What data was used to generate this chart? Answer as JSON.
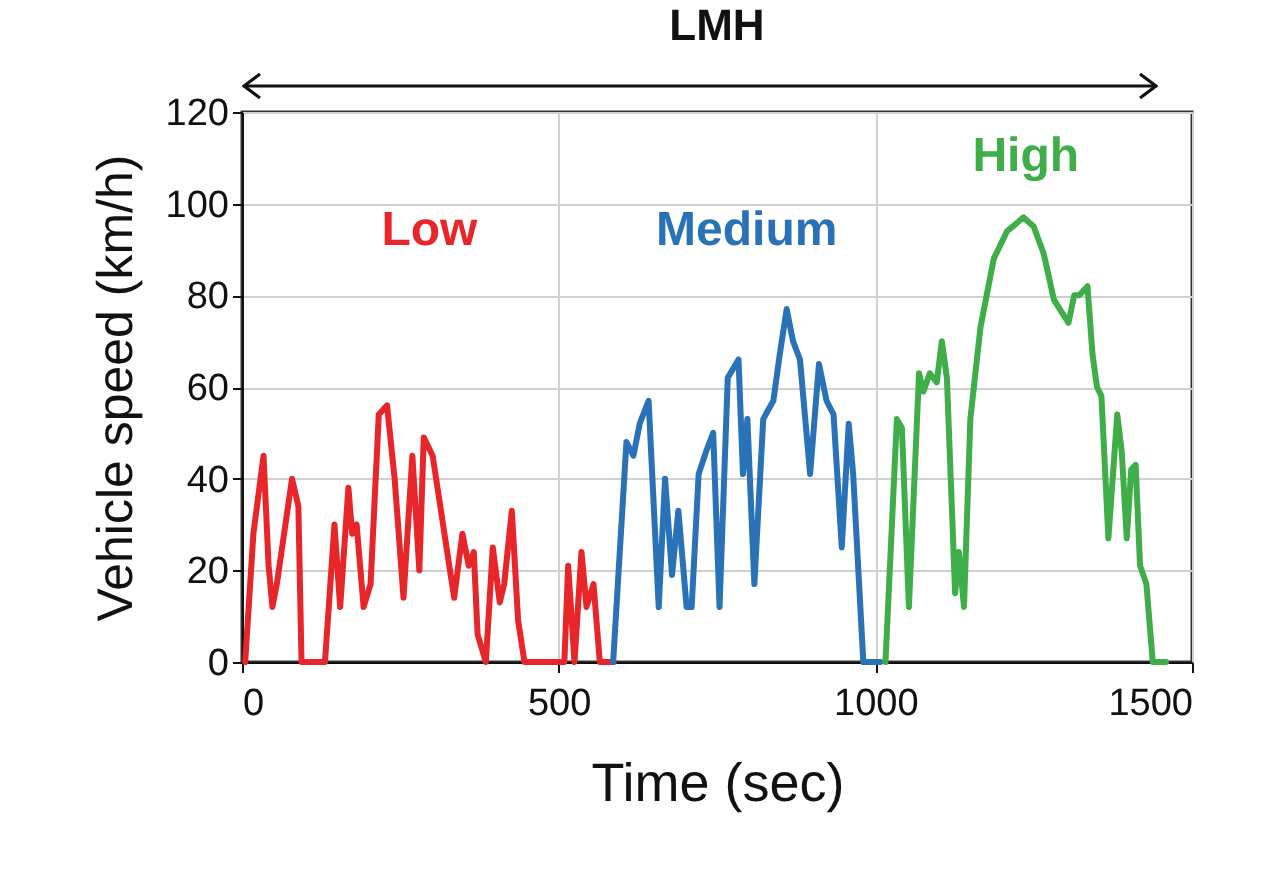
{
  "chart_data": {
    "type": "line",
    "title": "LMH",
    "xlabel": "Time (sec)",
    "ylabel": "Vehicle speed (km/h)",
    "xlim": [
      0,
      1500
    ],
    "xticks": [
      0,
      500,
      1000,
      1500
    ],
    "ylim": [
      0,
      120
    ],
    "yticks": [
      0,
      20,
      40,
      60,
      80,
      100,
      120
    ],
    "grid": true,
    "legend": false,
    "series": [
      {
        "name": "Low",
        "color": "#e8262a",
        "x": [
          5,
          18,
          34,
          42,
          48,
          55,
          79,
          89,
          94,
          131,
          146,
          155,
          168,
          174,
          181,
          192,
          203,
          216,
          229,
          241,
          255,
          269,
          280,
          287,
          301,
          312,
          324,
          335,
          348,
          358,
          366,
          372,
          385,
          396,
          407,
          414,
          426,
          436,
          446,
          509,
          515,
          525,
          536,
          544,
          555,
          565,
          587
        ],
        "values": [
          0,
          28,
          45,
          21,
          12,
          17,
          40,
          34,
          0,
          0,
          30,
          12,
          38,
          28,
          30,
          12,
          17,
          54,
          56,
          40,
          14,
          45,
          20,
          49,
          45,
          35,
          24,
          14,
          28,
          21,
          24,
          6,
          0,
          25,
          13,
          17,
          33,
          9,
          0,
          0,
          21,
          0,
          24,
          12,
          17,
          0,
          0
        ]
      },
      {
        "name": "Medium",
        "color": "#2a72b8",
        "x": [
          586,
          607,
          618,
          628,
          642,
          658,
          668,
          679,
          689,
          702,
          710,
          721,
          733,
          744,
          754,
          767,
          784,
          791,
          798,
          809,
          823,
          839,
          849,
          860,
          870,
          881,
          897,
          911,
          923,
          934,
          947,
          958,
          965,
          981,
          1008
        ],
        "values": [
          0,
          48,
          45,
          52,
          57,
          12,
          40,
          19,
          33,
          12,
          12,
          41,
          46,
          50,
          12,
          62,
          66,
          41,
          53,
          17,
          53,
          57,
          67,
          77,
          70,
          66,
          41,
          65,
          57,
          54,
          25,
          52,
          41,
          0,
          0
        ]
      },
      {
        "name": "High",
        "color": "#3fae49",
        "x": [
          1016,
          1034,
          1042,
          1053,
          1069,
          1076,
          1086,
          1097,
          1105,
          1113,
          1126,
          1132,
          1140,
          1150,
          1166,
          1187,
          1208,
          1234,
          1250,
          1266,
          1282,
          1305,
          1314,
          1322,
          1335,
          1343,
          1350,
          1357,
          1368,
          1382,
          1389,
          1397,
          1404,
          1411,
          1418,
          1428,
          1438,
          1459
        ],
        "values": [
          0,
          53,
          51,
          12,
          63,
          59,
          63,
          61,
          70,
          62,
          15,
          24,
          12,
          53,
          73,
          88,
          94,
          97,
          95,
          89,
          79,
          74,
          80,
          80,
          82,
          67,
          60,
          58,
          27,
          54,
          46,
          27,
          42,
          43,
          21,
          17,
          0,
          0
        ]
      }
    ]
  }
}
